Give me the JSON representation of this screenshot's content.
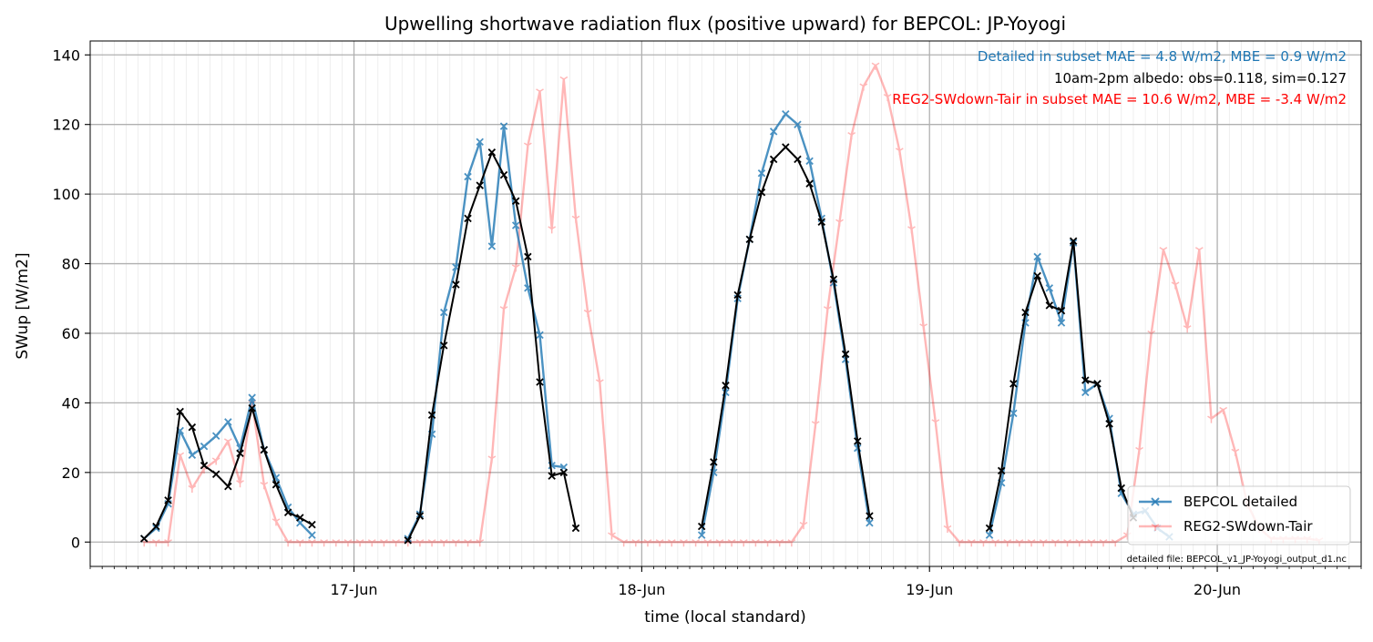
{
  "chart_data": {
    "type": "line",
    "title": "Upwelling shortwave radiation flux (positive upward) for BEPCOL: JP-Yoyogi",
    "xlabel": "time (local standard)",
    "ylabel": "SWup [W/m2]",
    "ylim": [
      -7,
      144
    ],
    "xlim": [
      "2024-06-16 02:00",
      "2024-06-20 12:00"
    ],
    "xticks": [
      {
        "label": "17-Jun",
        "t": "2024-06-17 00:00"
      },
      {
        "label": "18-Jun",
        "t": "2024-06-18 00:00"
      },
      {
        "label": "19-Jun",
        "t": "2024-06-19 00:00"
      },
      {
        "label": "20-Jun",
        "t": "2024-06-20 00:00"
      }
    ],
    "yticks": [
      0,
      20,
      40,
      60,
      80,
      100,
      120,
      140
    ],
    "grid": true,
    "legend_position": "lower-right",
    "annotations": [
      {
        "text": "Detailed in subset MAE = 4.8 W/m2, MBE = 0.9 W/m2",
        "color": "#1f77b4"
      },
      {
        "text": "10am-2pm albedo: obs=0.118, sim=0.127",
        "color": "#000000"
      },
      {
        "text": "REG2-SWdown-Tair in subset MAE = 10.6 W/m2, MBE = -3.4 W/m2",
        "color": "#ff0000"
      }
    ],
    "footnote": "detailed file: BEPCOL_v1_JP-Yoyogi_output_d1.nc",
    "series": [
      {
        "name": "BEPCOL detailed",
        "color": "#1f77b4",
        "marker": "x",
        "segments": [
          {
            "start": "2024-06-16 06:30",
            "values": [
              1,
              4,
              11,
              32,
              25,
              27.5,
              30.5,
              34.5,
              27,
              41.5,
              26.5,
              18.5,
              10,
              5.5,
              2
            ]
          },
          {
            "start": "2024-06-17 04:30",
            "values": [
              1,
              8,
              31,
              66,
              79,
              105,
              115,
              85,
              119.5,
              91,
              73,
              59.5,
              22,
              21.5
            ]
          },
          {
            "start": "2024-06-18 05:00",
            "values": [
              2,
              20,
              43,
              70,
              87,
              106,
              118,
              123,
              120,
              109.5,
              93,
              74.5,
              52.5,
              27,
              5.5
            ]
          },
          {
            "start": "2024-06-19 05:00",
            "values": [
              2,
              17,
              37,
              63,
              82,
              73,
              63,
              86,
              43,
              45.5,
              35.5,
              14,
              8,
              9,
              4,
              1.5
            ]
          }
        ]
      },
      {
        "name": "REG2-SWdown-Tair",
        "color": "#ff0000",
        "marker": "1",
        "segments": [
          {
            "start": "2024-06-16 06:30",
            "values": [
              0,
              0,
              0,
              25,
              15.5,
              21,
              23.5,
              29,
              17,
              40,
              16.5,
              6,
              0,
              0,
              0,
              0,
              0,
              0,
              0,
              0,
              0,
              0,
              0,
              0,
              0,
              0,
              0,
              0,
              0,
              24,
              67,
              79,
              114,
              129.5,
              90,
              133,
              93,
              66,
              46,
              2,
              0,
              0,
              0,
              0,
              0,
              0,
              0,
              0,
              0,
              0,
              0,
              0,
              0,
              0,
              0,
              5,
              34,
              67,
              92,
              117,
              131,
              137,
              128,
              112.5,
              90,
              62,
              34.5,
              4,
              0,
              0,
              0,
              0,
              0,
              0,
              0,
              0,
              0,
              0,
              0,
              0,
              0,
              0,
              2,
              26.5,
              60,
              84,
              74,
              61.5,
              84,
              35.5,
              38,
              26,
              11,
              4,
              1,
              1,
              1,
              1,
              0.5
            ]
          }
        ]
      },
      {
        "name": "",
        "color": "#000000",
        "marker": "x",
        "segments": [
          {
            "start": "2024-06-16 06:30",
            "values": [
              1,
              4.5,
              12,
              37.5,
              33,
              22,
              19.5,
              16,
              25.5,
              38.5,
              26.5,
              16.5,
              8.5,
              7,
              5
            ]
          },
          {
            "start": "2024-06-17 04:30",
            "values": [
              0.5,
              7.5,
              36.5,
              56.5,
              74,
              93,
              102.5,
              112,
              105.5,
              98,
              82,
              46,
              19,
              20,
              4
            ]
          },
          {
            "start": "2024-06-18 05:00",
            "values": [
              4.5,
              23,
              45,
              71,
              87,
              100.5,
              110,
              113.5,
              110,
              103,
              92,
              75.5,
              54,
              29,
              7.5
            ]
          },
          {
            "start": "2024-06-19 05:00",
            "values": [
              4,
              20.5,
              45.5,
              66,
              76.5,
              68,
              66.5,
              86.5,
              46.5,
              45.5,
              34,
              15.5,
              7
            ]
          }
        ]
      }
    ]
  }
}
